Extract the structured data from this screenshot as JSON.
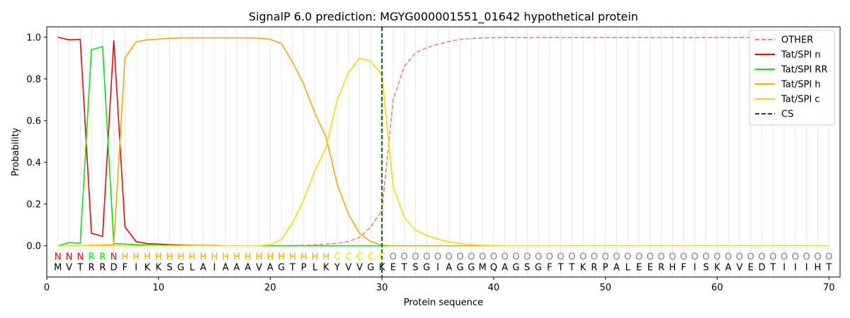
{
  "chart_data": {
    "type": "line",
    "title": "SignalP 6.0 prediction: MGYG000001551_01642 hypothetical protein",
    "xlabel": "Protein sequence",
    "ylabel": "Probability",
    "xlim": [
      0,
      71
    ],
    "ylim": [
      -0.15,
      1.05
    ],
    "x_ticks": [
      0,
      10,
      20,
      30,
      40,
      50,
      60,
      70
    ],
    "y_ticks": [
      0.0,
      0.2,
      0.4,
      0.6,
      0.8,
      1.0
    ],
    "x_tick_labels": [
      "0",
      "10",
      "20",
      "30",
      "40",
      "50",
      "60",
      "70"
    ],
    "y_tick_labels": [
      "0.0",
      "0.2",
      "0.4",
      "0.6",
      "0.8",
      "1.0"
    ],
    "grid": "vertical lines at each residue",
    "legend_position": "upper right",
    "sequence": "MVTRRDFIKKSGLAIAAAVAGTPLKYVVGKETSGIAGGMQAGSGFTTKRPALEERHFISKAVEDTIIIHT",
    "labels": "NNNRRNHHHHHHHHHHHHHHHHHHHCCCCCOOOOOOOOOOOOOOOOOOOOOOOOOOOOOOOOOOOOOOOO",
    "label_colors": {
      "N": "#ff0000",
      "R": "#00ee00",
      "H": "#ffa500",
      "C": "#ffd700",
      "O": "#808080"
    },
    "cs_position": 30,
    "cs_color": "#006400",
    "cs_name": "CS",
    "x": [
      1,
      2,
      3,
      4,
      5,
      6,
      7,
      8,
      9,
      10,
      11,
      12,
      13,
      14,
      15,
      16,
      17,
      18,
      19,
      20,
      21,
      22,
      23,
      24,
      25,
      26,
      27,
      28,
      29,
      30,
      31,
      32,
      33,
      34,
      35,
      36,
      37,
      38,
      39,
      40,
      41,
      42,
      43,
      44,
      45,
      46,
      47,
      48,
      49,
      50,
      51,
      52,
      53,
      54,
      55,
      56,
      57,
      58,
      59,
      60,
      61,
      62,
      63,
      64,
      65,
      66,
      67,
      68,
      69,
      70
    ],
    "series": [
      {
        "name": "OTHER",
        "color": "#f08080",
        "dashed": true,
        "values": [
          0.0,
          0.0,
          0.0,
          0.0,
          0.0,
          0.0,
          0.0,
          0.0,
          0.0,
          0.0,
          0.0,
          0.0,
          0.0,
          0.0,
          0.0,
          0.0,
          0.0,
          0.0,
          0.0,
          0.0,
          0.0,
          0.001,
          0.002,
          0.004,
          0.008,
          0.012,
          0.02,
          0.04,
          0.09,
          0.17,
          0.7,
          0.86,
          0.925,
          0.95,
          0.966,
          0.98,
          0.99,
          0.994,
          0.997,
          0.998,
          0.999,
          0.999,
          0.999,
          0.999,
          0.999,
          0.999,
          0.999,
          0.999,
          0.999,
          0.999,
          0.999,
          0.999,
          0.999,
          0.999,
          0.999,
          0.999,
          0.999,
          0.999,
          0.999,
          0.999,
          0.999,
          0.999,
          0.999,
          0.999,
          0.999,
          0.999,
          0.999,
          0.999,
          0.999,
          0.999
        ]
      },
      {
        "name": "Tat/SPI n",
        "color": "#ff0000",
        "dashed": false,
        "values": [
          1.0,
          0.988,
          0.99,
          0.06,
          0.045,
          0.985,
          0.09,
          0.02,
          0.01,
          0.008,
          0.005,
          0.003,
          0.002,
          0.001,
          0.001,
          0.0,
          0.0,
          0.0,
          0.0,
          0.0,
          0.0,
          0.0,
          0.0,
          0.0,
          0.0,
          0.0,
          0.0,
          0.0,
          0.0,
          0.0,
          0.0,
          0.0,
          0.0,
          0.0,
          0.0,
          0.0,
          0.0,
          0.0,
          0.0,
          0.0,
          0.0,
          0.0,
          0.0,
          0.0,
          0.0,
          0.0,
          0.0,
          0.0,
          0.0,
          0.0,
          0.0,
          0.0,
          0.0,
          0.0,
          0.0,
          0.0,
          0.0,
          0.0,
          0.0,
          0.0,
          0.0,
          0.0,
          0.0,
          0.0,
          0.0,
          0.0,
          0.0,
          0.0,
          0.0,
          0.0
        ]
      },
      {
        "name": "Tat/SPI RR",
        "color": "#00ee00",
        "dashed": false,
        "values": [
          0.0,
          0.015,
          0.012,
          0.94,
          0.955,
          0.01,
          0.008,
          0.005,
          0.003,
          0.002,
          0.001,
          0.001,
          0.001,
          0.0,
          0.0,
          0.0,
          0.0,
          0.0,
          0.0,
          0.0,
          0.0,
          0.0,
          0.0,
          0.0,
          0.0,
          0.0,
          0.0,
          0.0,
          0.0,
          0.0,
          0.0,
          0.0,
          0.0,
          0.0,
          0.0,
          0.0,
          0.0,
          0.0,
          0.0,
          0.0,
          0.0,
          0.0,
          0.0,
          0.0,
          0.0,
          0.0,
          0.0,
          0.0,
          0.0,
          0.0,
          0.0,
          0.0,
          0.0,
          0.0,
          0.0,
          0.0,
          0.0,
          0.0,
          0.0,
          0.0,
          0.0,
          0.0,
          0.0,
          0.0,
          0.0,
          0.0,
          0.0,
          0.0,
          0.0,
          0.0
        ]
      },
      {
        "name": "Tat/SPI h",
        "color": "#ffa500",
        "dashed": false,
        "values": [
          0.0,
          0.0,
          0.0,
          0.002,
          0.003,
          0.005,
          0.9,
          0.978,
          0.988,
          0.991,
          0.995,
          0.997,
          0.997,
          0.997,
          0.997,
          0.997,
          0.997,
          0.997,
          0.996,
          0.99,
          0.97,
          0.88,
          0.775,
          0.635,
          0.52,
          0.295,
          0.15,
          0.06,
          0.02,
          0.003,
          0.0,
          0.0,
          0.0,
          0.0,
          0.0,
          0.0,
          0.0,
          0.0,
          0.0,
          0.0,
          0.0,
          0.0,
          0.0,
          0.0,
          0.0,
          0.0,
          0.0,
          0.0,
          0.0,
          0.0,
          0.0,
          0.0,
          0.0,
          0.0,
          0.0,
          0.0,
          0.0,
          0.0,
          0.0,
          0.0,
          0.0,
          0.0,
          0.0,
          0.0,
          0.0,
          0.0,
          0.0,
          0.0,
          0.0,
          0.0
        ]
      },
      {
        "name": "Tat/SPI c",
        "color": "#ffd700",
        "dashed": false,
        "values": [
          0.0,
          0.0,
          0.0,
          0.0,
          0.0,
          0.0,
          0.0,
          0.0,
          0.0,
          0.0,
          0.0,
          0.0,
          0.0,
          0.0,
          0.0,
          0.0,
          0.0,
          0.0,
          0.0,
          0.005,
          0.03,
          0.11,
          0.22,
          0.36,
          0.47,
          0.7,
          0.83,
          0.9,
          0.885,
          0.82,
          0.285,
          0.135,
          0.075,
          0.05,
          0.032,
          0.018,
          0.01,
          0.005,
          0.002,
          0.001,
          0.0,
          0.0,
          0.0,
          0.0,
          0.0,
          0.0,
          0.0,
          0.0,
          0.0,
          0.0,
          0.0,
          0.0,
          0.0,
          0.0,
          0.0,
          0.0,
          0.0,
          0.0,
          0.0,
          0.0,
          0.0,
          0.0,
          0.0,
          0.0,
          0.0,
          0.0,
          0.0,
          0.0,
          0.0,
          0.0
        ]
      }
    ]
  }
}
